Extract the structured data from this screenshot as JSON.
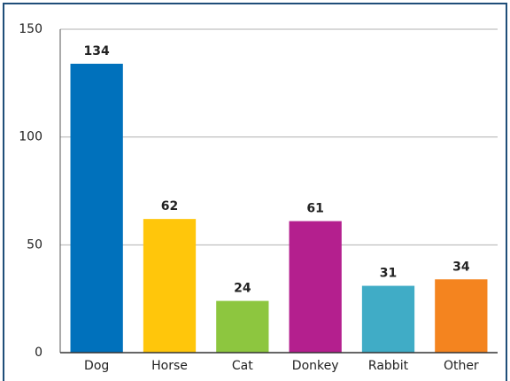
{
  "chart_data": {
    "type": "bar",
    "categories": [
      "Dog",
      "Horse",
      "Cat",
      "Donkey",
      "Rabbit",
      "Other"
    ],
    "values": [
      134,
      62,
      24,
      61,
      31,
      34
    ],
    "colors": [
      "#0071bc",
      "#ffc60b",
      "#8dc63f",
      "#b41f8e",
      "#40acc6",
      "#f4841f"
    ],
    "ylim": [
      0,
      150
    ],
    "yticks": [
      0,
      50,
      100,
      150
    ],
    "grid": true
  }
}
